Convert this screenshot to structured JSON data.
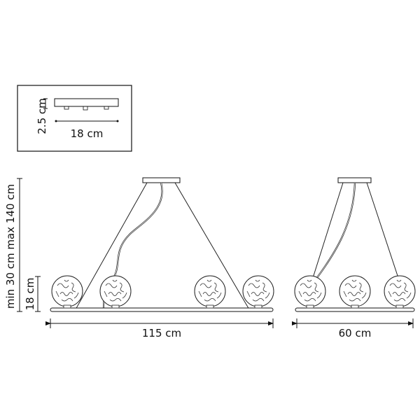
{
  "inset": {
    "height_label": "2.5 cm",
    "width_label": "18 cm"
  },
  "front_view": {
    "width_label": "115 cm",
    "drop_label": "min 30 cm max 140 cm",
    "globe_height_label": "18 cm"
  },
  "side_view": {
    "width_label": "60 cm"
  },
  "colors": {
    "line": "#111111",
    "background": "#ffffff"
  }
}
